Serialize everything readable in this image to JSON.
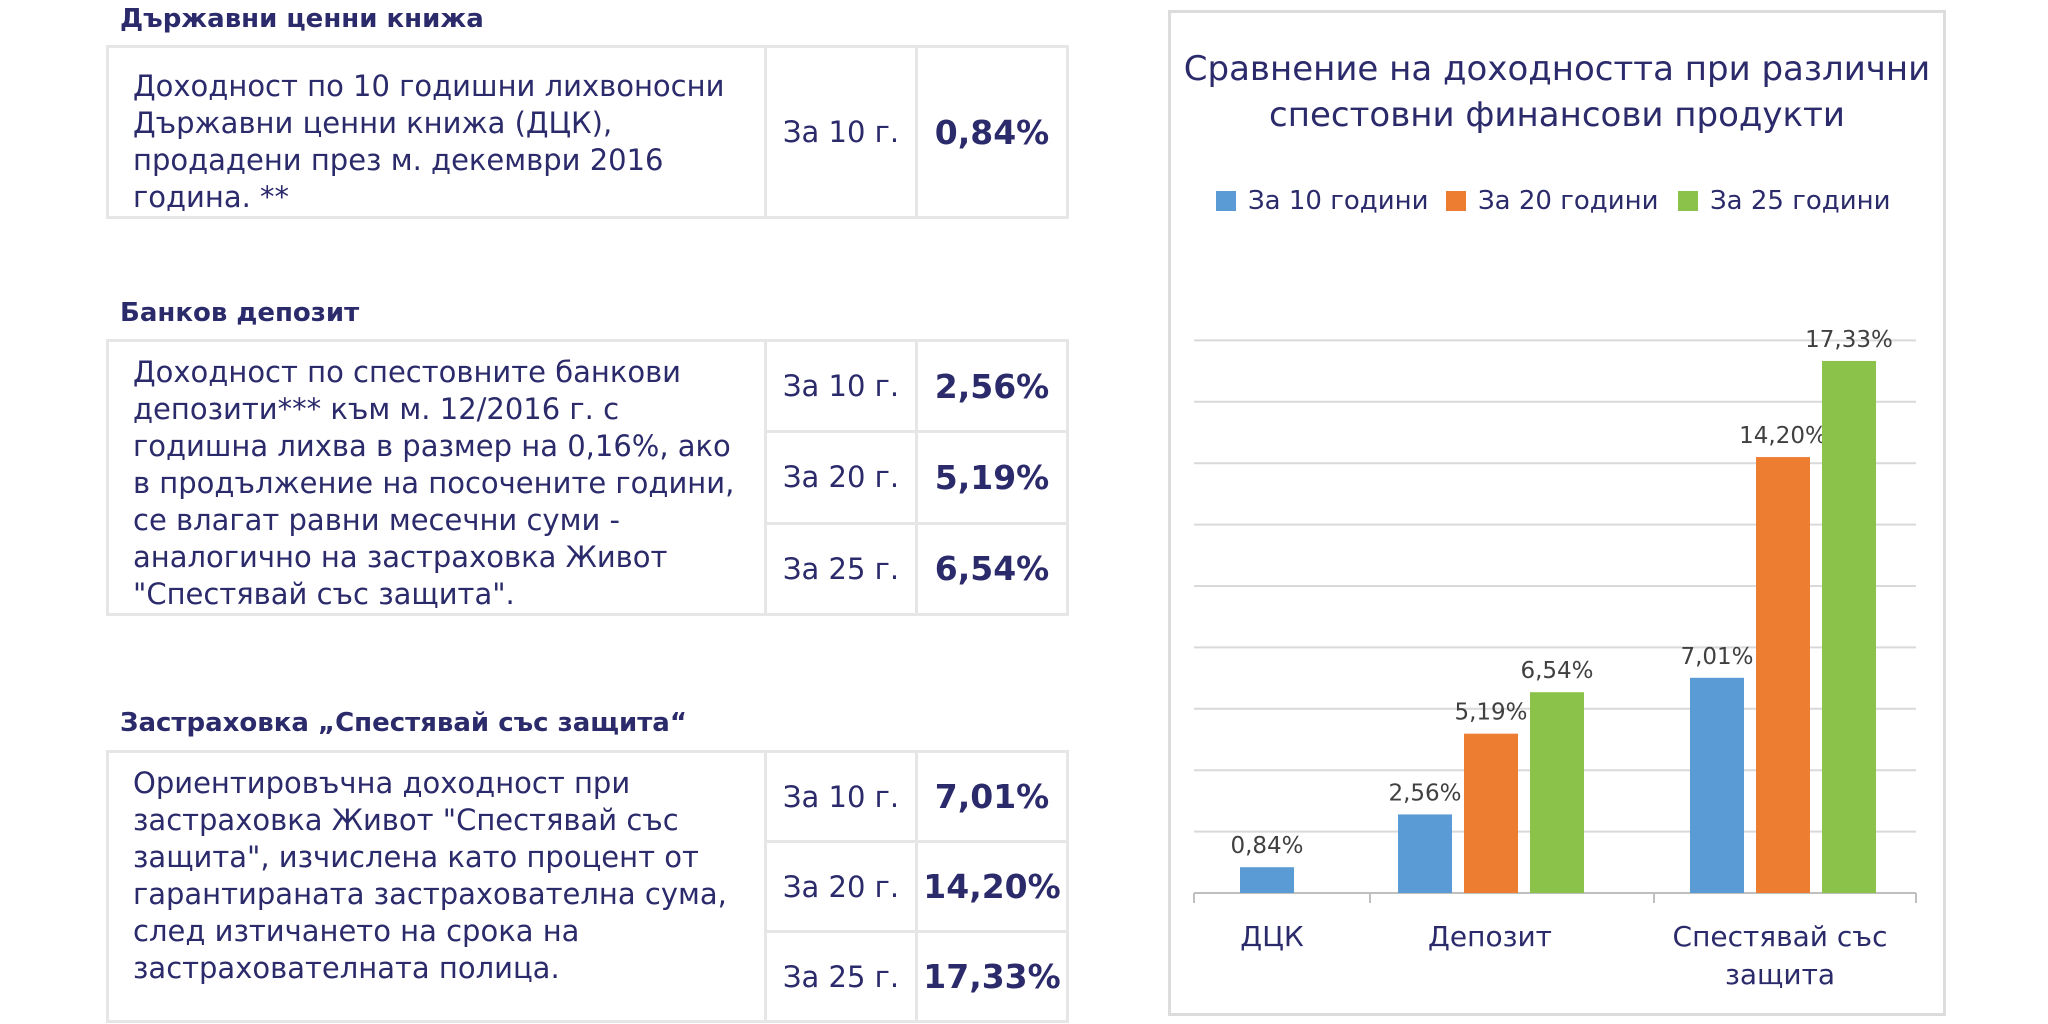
{
  "sections": [
    {
      "title": "Държавни ценни книжа",
      "description": "Доходност по 10 годишни лихвоносни Държавни ценни книжа (ДЦК), продадени през м. декември 2016 година. **",
      "rows": [
        {
          "period": "За 10 г.",
          "value": "0,84%"
        }
      ]
    },
    {
      "title": "Банков депозит",
      "description": "Доходност по спестовните банкови депозити*** към м. 12/2016 г. с годишна лихва в размер на 0,16%, ако в продължение на посочените години, се влагат равни месечни суми - аналогично на застраховка Живот \"Спестявай със защита\".",
      "rows": [
        {
          "period": "За 10 г.",
          "value": "2,56%"
        },
        {
          "period": "За 20 г.",
          "value": "5,19%"
        },
        {
          "period": "За 25 г.",
          "value": "6,54%"
        }
      ]
    },
    {
      "title": "Застраховка „Спестявай със защита“",
      "description": "Ориентировъчна доходност при застраховка Живот \"Спестявай със защита\", изчислена като процент от гарантираната застрахователна сума, след изтичането на срока на застрахователната полица.",
      "rows": [
        {
          "period": "За 10 г.",
          "value": "7,01%"
        },
        {
          "period": "За 20 г.",
          "value": "14,20%"
        },
        {
          "period": "За 25 г.",
          "value": "17,33%"
        }
      ]
    }
  ],
  "chart_data": {
    "type": "bar",
    "title": "Сравнение на доходността при различни спестовни финансови продукти",
    "categories": [
      "ДЦК",
      "Депозит",
      "Спестявай със защита"
    ],
    "series": [
      {
        "name": "За 10 години",
        "color": "#5b9bd5",
        "values": [
          0.84,
          2.56,
          7.01
        ],
        "labels": [
          "0,84%",
          "2,56%",
          "7,01%"
        ]
      },
      {
        "name": "За 20 години",
        "color": "#ed7d31",
        "values": [
          null,
          5.19,
          14.2
        ],
        "labels": [
          "",
          "5,19%",
          "14,20%"
        ]
      },
      {
        "name": "За 25 години",
        "color": "#8bc34a",
        "values": [
          null,
          6.54,
          17.33
        ],
        "labels": [
          "",
          "6,54%",
          "17,33%"
        ]
      }
    ],
    "ylim": [
      0,
      18
    ],
    "grid": true,
    "legend_position": "top",
    "xlabel": "",
    "ylabel": ""
  }
}
